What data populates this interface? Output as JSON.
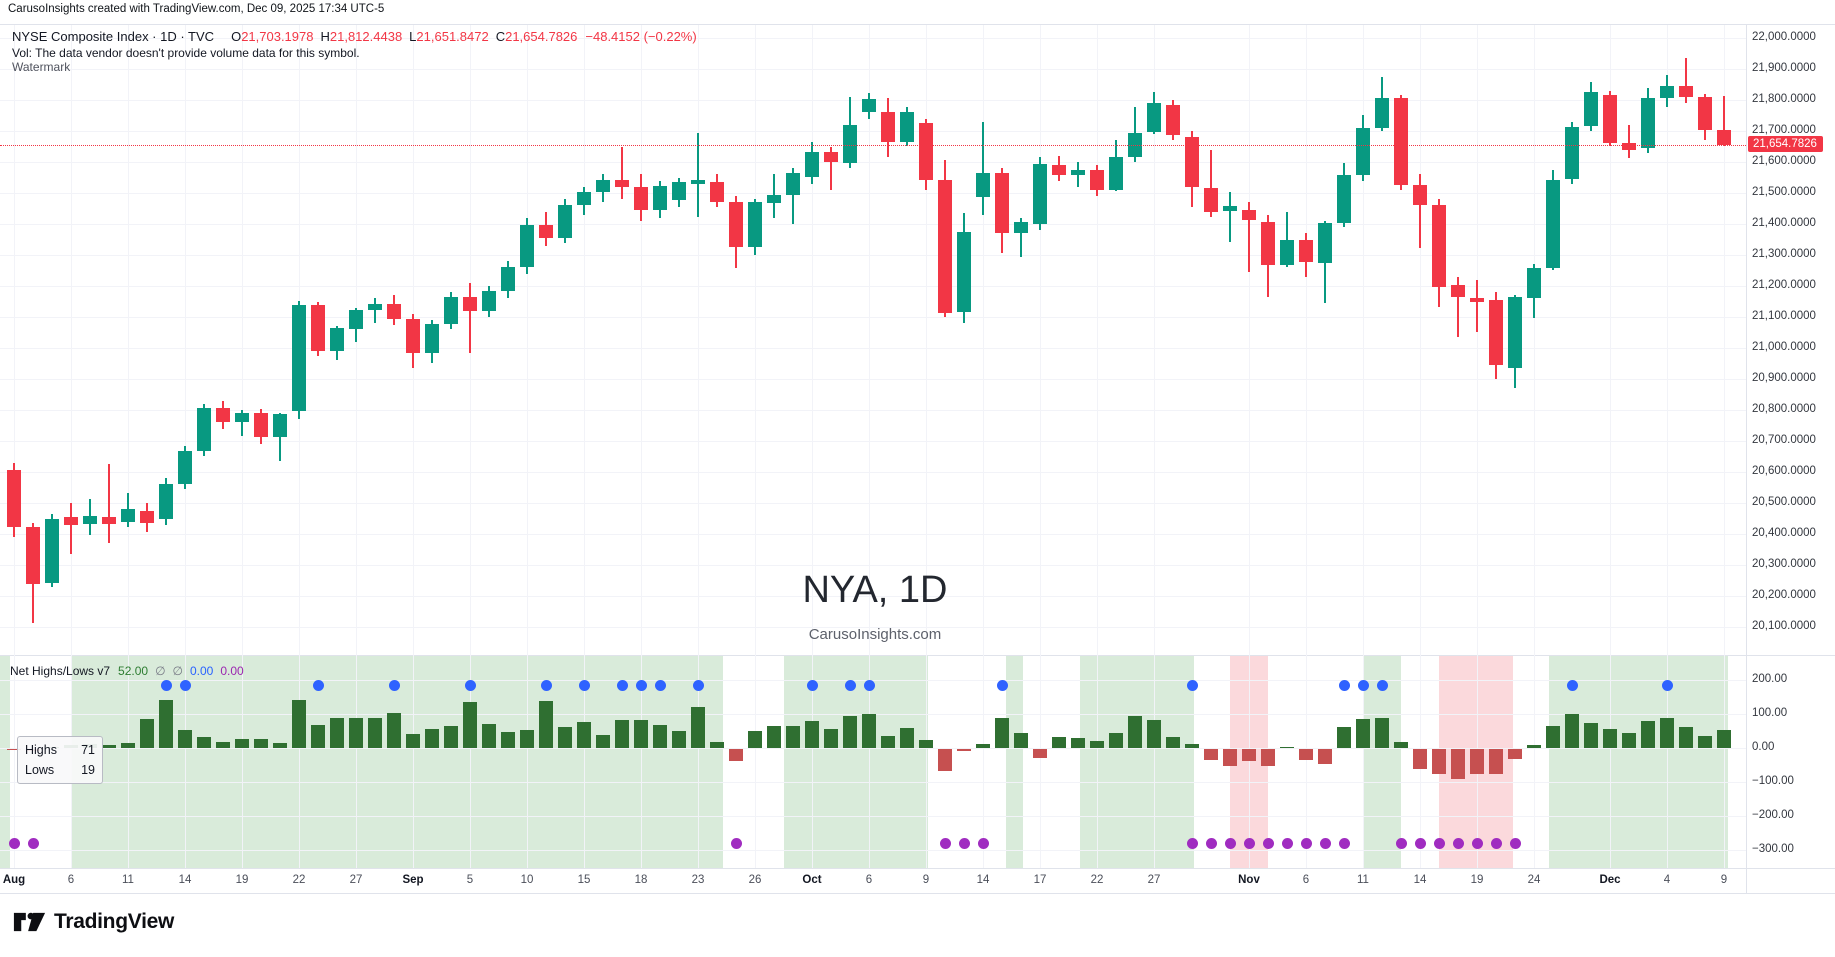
{
  "header": {
    "attribution": "CarusoInsights created with TradingView.com, Dec 09, 2025 17:34 UTC-5"
  },
  "legend": {
    "title": "NYSE Composite Index · 1D · TVC",
    "open_label": "O",
    "open": "21,703.1978",
    "high_label": "H",
    "high": "21,812.4438",
    "low_label": "L",
    "low": "21,651.8472",
    "close_label": "C",
    "close": "21,654.7826",
    "change": "−48.4152 (−0.22%)",
    "vol_line": "Vol: The data vendor doesn't provide volume data for this symbol.",
    "watermark_row": "Watermark"
  },
  "watermark": {
    "title": "NYA, 1D",
    "subtitle": "CarusoInsights.com"
  },
  "price_axis": {
    "current": "21,654.7826"
  },
  "indicator": {
    "legend": {
      "name": "Net Highs/Lows v7",
      "value": "52.00",
      "null_a": "∅",
      "null_b": "∅",
      "value_blue": "0.00",
      "value_purple": "0.00"
    },
    "tooltip": {
      "highs_label": "Highs",
      "highs_value": "71",
      "lows_label": "Lows",
      "lows_value": "19"
    }
  },
  "logo": {
    "brand": "TradingView"
  },
  "colors": {
    "up": "#089981",
    "down": "#f23645",
    "hist_pos": "#2f6f31",
    "hist_neg": "#c65050",
    "dot_blue": "#2f62ff",
    "dot_purple": "#a02cc0",
    "band_green": "#d9ebda",
    "band_pink": "#fbd9dc",
    "current_line": "#f23645"
  },
  "time_axis": [
    {
      "label": "Aug",
      "bar": 0,
      "major": true
    },
    {
      "label": "6",
      "bar": 3
    },
    {
      "label": "11",
      "bar": 6
    },
    {
      "label": "14",
      "bar": 9
    },
    {
      "label": "19",
      "bar": 12
    },
    {
      "label": "22",
      "bar": 15
    },
    {
      "label": "27",
      "bar": 18
    },
    {
      "label": "Sep",
      "bar": 21,
      "major": true
    },
    {
      "label": "5",
      "bar": 24
    },
    {
      "label": "10",
      "bar": 27
    },
    {
      "label": "15",
      "bar": 30
    },
    {
      "label": "18",
      "bar": 33
    },
    {
      "label": "23",
      "bar": 36
    },
    {
      "label": "26",
      "bar": 39
    },
    {
      "label": "Oct",
      "bar": 42,
      "major": true
    },
    {
      "label": "6",
      "bar": 45
    },
    {
      "label": "9",
      "bar": 48
    },
    {
      "label": "14",
      "bar": 51
    },
    {
      "label": "17",
      "bar": 54
    },
    {
      "label": "22",
      "bar": 57
    },
    {
      "label": "27",
      "bar": 60
    },
    {
      "label": "Nov",
      "bar": 65,
      "major": true
    },
    {
      "label": "6",
      "bar": 68
    },
    {
      "label": "11",
      "bar": 71
    },
    {
      "label": "14",
      "bar": 74
    },
    {
      "label": "19",
      "bar": 77
    },
    {
      "label": "24",
      "bar": 80
    },
    {
      "label": "Dec",
      "bar": 84,
      "major": true
    },
    {
      "label": "4",
      "bar": 87
    },
    {
      "label": "9",
      "bar": 90
    }
  ],
  "chart_data": {
    "type": "candlestick+histogram",
    "title": "NYSE Composite Index, Daily, with Net Highs/Lows v7 indicator",
    "symbol": "NYA",
    "interval": "1D",
    "price_ylim": [
      20010,
      22045
    ],
    "indicator_ylim": [
      -310,
      275
    ],
    "legend_on": false,
    "grid": true,
    "current_price": 21654.7826,
    "price_ticks": [
      {
        "label": "22,000.0000",
        "value": 22000
      },
      {
        "label": "21,900.0000",
        "value": 21900
      },
      {
        "label": "21,800.0000",
        "value": 21800
      },
      {
        "label": "21,700.0000",
        "value": 21700
      },
      {
        "label": "21,600.0000",
        "value": 21600
      },
      {
        "label": "21,500.0000",
        "value": 21500
      },
      {
        "label": "21,400.0000",
        "value": 21400
      },
      {
        "label": "21,300.0000",
        "value": 21300
      },
      {
        "label": "21,200.0000",
        "value": 21200
      },
      {
        "label": "21,100.0000",
        "value": 21100
      },
      {
        "label": "21,000.0000",
        "value": 21000
      },
      {
        "label": "20,900.0000",
        "value": 20900
      },
      {
        "label": "20,800.0000",
        "value": 20800
      },
      {
        "label": "20,700.0000",
        "value": 20700
      },
      {
        "label": "20,600.0000",
        "value": 20600
      },
      {
        "label": "20,500.0000",
        "value": 20500
      },
      {
        "label": "20,400.0000",
        "value": 20400
      },
      {
        "label": "20,300.0000",
        "value": 20300
      },
      {
        "label": "20,200.0000",
        "value": 20200
      },
      {
        "label": "20,100.0000",
        "value": 20100
      }
    ],
    "indicator_ticks": [
      {
        "label": "200.00",
        "value": 200
      },
      {
        "label": "100.00",
        "value": 100
      },
      {
        "label": "0.00",
        "value": 0
      },
      {
        "label": "−100.00",
        "value": -100
      },
      {
        "label": "−200.00",
        "value": -200
      },
      {
        "label": "−300.00",
        "value": -300
      }
    ],
    "candles_format": [
      "date",
      "open",
      "high",
      "low",
      "close"
    ],
    "candles": [
      [
        "Aug 1",
        20606,
        20629,
        20390,
        20423
      ],
      [
        "Aug 4",
        20423,
        20435,
        20113,
        20239
      ],
      [
        "Aug 5",
        20242,
        20465,
        20230,
        20448
      ],
      [
        "Aug 6",
        20455,
        20500,
        20335,
        20429
      ],
      [
        "Aug 7",
        20432,
        20513,
        20397,
        20458
      ],
      [
        "Aug 8",
        20455,
        20626,
        20371,
        20432
      ],
      [
        "Aug 11",
        20439,
        20532,
        20423,
        20481
      ],
      [
        "Aug 12",
        20474,
        20500,
        20406,
        20435
      ],
      [
        "Aug 13",
        20448,
        20580,
        20430,
        20561
      ],
      [
        "Aug 14",
        20561,
        20685,
        20545,
        20668
      ],
      [
        "Aug 15",
        20668,
        20820,
        20650,
        20806
      ],
      [
        "Aug 18",
        20806,
        20830,
        20740,
        20762
      ],
      [
        "Aug 19",
        20762,
        20800,
        20715,
        20790
      ],
      [
        "Aug 20",
        20790,
        20802,
        20690,
        20712
      ],
      [
        "Aug 21",
        20712,
        20790,
        20635,
        20788
      ],
      [
        "Aug 22",
        20798,
        21152,
        20770,
        21139
      ],
      [
        "Aug 25",
        21139,
        21150,
        20975,
        20990
      ],
      [
        "Aug 26",
        20990,
        21070,
        20960,
        21064
      ],
      [
        "Aug 27",
        21062,
        21130,
        21020,
        21123
      ],
      [
        "Aug 28",
        21123,
        21160,
        21080,
        21142
      ],
      [
        "Aug 29",
        21142,
        21170,
        21075,
        21095
      ],
      [
        "Sep 2",
        21095,
        21110,
        20935,
        20985
      ],
      [
        "Sep 3",
        20985,
        21090,
        20950,
        21078
      ],
      [
        "Sep 4",
        21078,
        21180,
        21060,
        21165
      ],
      [
        "Sep 5",
        21165,
        21210,
        20985,
        21120
      ],
      [
        "Sep 8",
        21120,
        21200,
        21100,
        21185
      ],
      [
        "Sep 9",
        21185,
        21280,
        21160,
        21262
      ],
      [
        "Sep 10",
        21262,
        21420,
        21240,
        21398
      ],
      [
        "Sep 11",
        21398,
        21440,
        21330,
        21355
      ],
      [
        "Sep 12",
        21355,
        21480,
        21340,
        21462
      ],
      [
        "Sep 15",
        21462,
        21520,
        21430,
        21502
      ],
      [
        "Sep 16",
        21502,
        21560,
        21470,
        21543
      ],
      [
        "Sep 17",
        21543,
        21650,
        21480,
        21520
      ],
      [
        "Sep 18",
        21520,
        21560,
        21410,
        21445
      ],
      [
        "Sep 19",
        21445,
        21540,
        21420,
        21523
      ],
      [
        "Sep 22",
        21477,
        21550,
        21455,
        21535
      ],
      [
        "Sep 23",
        21530,
        21694,
        21423,
        21541
      ],
      [
        "Sep 24",
        21535,
        21560,
        21455,
        21471
      ],
      [
        "Sep 25",
        21471,
        21490,
        21258,
        21326
      ],
      [
        "Sep 26",
        21326,
        21480,
        21300,
        21471
      ],
      [
        "Sep 29",
        21468,
        21560,
        21420,
        21494
      ],
      [
        "Sep 30",
        21494,
        21580,
        21400,
        21565
      ],
      [
        "Oct 1",
        21552,
        21665,
        21530,
        21632
      ],
      [
        "Oct 2",
        21632,
        21650,
        21510,
        21600
      ],
      [
        "Oct 3",
        21597,
        21810,
        21580,
        21719
      ],
      [
        "Oct 6",
        21761,
        21823,
        21740,
        21803
      ],
      [
        "Oct 7",
        21761,
        21806,
        21616,
        21664
      ],
      [
        "Oct 8",
        21665,
        21777,
        21650,
        21761
      ],
      [
        "Oct 9",
        21726,
        21740,
        21510,
        21542
      ],
      [
        "Oct 10",
        21542,
        21606,
        21100,
        21113
      ],
      [
        "Oct 13",
        21116,
        21435,
        21080,
        21374
      ],
      [
        "Oct 14",
        21487,
        21729,
        21429,
        21565
      ],
      [
        "Oct 15",
        21565,
        21580,
        21306,
        21371
      ],
      [
        "Oct 16",
        21371,
        21420,
        21294,
        21406
      ],
      [
        "Oct 17",
        21400,
        21616,
        21380,
        21594
      ],
      [
        "Oct 20",
        21590,
        21620,
        21540,
        21558
      ],
      [
        "Oct 21",
        21558,
        21600,
        21520,
        21574
      ],
      [
        "Oct 22",
        21574,
        21590,
        21490,
        21510
      ],
      [
        "Oct 23",
        21510,
        21671,
        21505,
        21616
      ],
      [
        "Oct 24",
        21616,
        21777,
        21600,
        21694
      ],
      [
        "Oct 27",
        21697,
        21826,
        21690,
        21790
      ],
      [
        "Oct 28",
        21784,
        21800,
        21670,
        21687
      ],
      [
        "Oct 29",
        21681,
        21700,
        21455,
        21519
      ],
      [
        "Oct 30",
        21516,
        21639,
        21423,
        21439
      ],
      [
        "Oct 31",
        21442,
        21503,
        21342,
        21458
      ],
      [
        "Nov 3",
        21445,
        21470,
        21245,
        21413
      ],
      [
        "Nov 4",
        21406,
        21430,
        21165,
        21268
      ],
      [
        "Nov 5",
        21268,
        21439,
        21260,
        21348
      ],
      [
        "Nov 6",
        21348,
        21370,
        21229,
        21277
      ],
      [
        "Nov 7",
        21274,
        21410,
        21145,
        21403
      ],
      [
        "Nov 10",
        21403,
        21597,
        21390,
        21558
      ],
      [
        "Nov 11",
        21558,
        21752,
        21540,
        21710
      ],
      [
        "Nov 12",
        21710,
        21875,
        21700,
        21806
      ],
      [
        "Nov 13",
        21806,
        21815,
        21510,
        21526
      ],
      [
        "Nov 14",
        21526,
        21560,
        21323,
        21461
      ],
      [
        "Nov 17",
        21461,
        21480,
        21132,
        21197
      ],
      [
        "Nov 18",
        21203,
        21230,
        21035,
        21165
      ],
      [
        "Nov 19",
        21161,
        21219,
        21052,
        21148
      ],
      [
        "Nov 20",
        21155,
        21180,
        20900,
        20945
      ],
      [
        "Nov 21",
        20935,
        21170,
        20870,
        21164
      ],
      [
        "Nov 24",
        21161,
        21270,
        21097,
        21258
      ],
      [
        "Nov 25",
        21258,
        21574,
        21250,
        21542
      ],
      [
        "Nov 26",
        21545,
        21730,
        21530,
        21713
      ],
      [
        "Nov 28",
        21716,
        21858,
        21700,
        21826
      ],
      [
        "Dec 1",
        21816,
        21830,
        21650,
        21661
      ],
      [
        "Dec 2",
        21661,
        21719,
        21613,
        21639
      ],
      [
        "Dec 3",
        21645,
        21839,
        21630,
        21806
      ],
      [
        "Dec 4",
        21806,
        21881,
        21777,
        21845
      ],
      [
        "Dec 5",
        21845,
        21935,
        21790,
        21810
      ],
      [
        "Dec 8",
        21810,
        21820,
        21671,
        21703
      ],
      [
        "Dec 9",
        21703.2,
        21812.44,
        21651.85,
        21654.78
      ]
    ],
    "net_highs_lows": [
      -4,
      -6,
      4,
      8,
      12,
      8,
      15,
      85,
      141,
      53,
      33,
      19,
      26,
      26,
      14,
      141,
      68,
      88,
      88,
      88,
      103,
      41,
      56,
      65,
      135,
      71,
      47,
      53,
      138,
      62,
      77,
      38,
      82,
      82,
      68,
      50,
      121,
      18,
      -38,
      50,
      65,
      65,
      79,
      57,
      95,
      100,
      36,
      60,
      24,
      -65,
      -8,
      11,
      88,
      45,
      -29,
      33,
      28,
      21,
      43,
      95,
      82,
      33,
      12,
      -35,
      -50,
      -38,
      -50,
      4,
      -35,
      -47,
      62,
      85,
      88,
      17,
      -60,
      -75,
      -90,
      -75,
      -75,
      -30,
      10,
      65,
      100,
      75,
      55,
      45,
      80,
      88,
      62,
      35,
      52
    ],
    "blue_dot_bars": [
      8,
      9,
      16,
      20,
      24,
      28,
      30,
      32,
      33,
      34,
      36,
      42,
      44,
      45,
      52,
      62,
      70,
      71,
      72,
      82,
      87
    ],
    "blue_dot_value": 185,
    "purple_dot_bars": [
      0,
      1,
      38,
      49,
      50,
      51,
      62,
      63,
      64,
      65,
      66,
      67,
      68,
      69,
      70,
      73,
      74,
      75,
      76,
      77,
      78,
      79
    ],
    "purple_dot_value": -280,
    "bands": [
      {
        "type": "green",
        "from": -0.5,
        "to": 0.3
      },
      {
        "type": "white",
        "from": 0.3,
        "to": 3.5
      },
      {
        "type": "green",
        "from": 3.5,
        "to": 37.8
      },
      {
        "type": "white",
        "from": 37.8,
        "to": 41.0
      },
      {
        "type": "green",
        "from": 41.0,
        "to": 48.6
      },
      {
        "type": "white",
        "from": 48.6,
        "to": 52.7
      },
      {
        "type": "green",
        "from": 52.7,
        "to": 53.6
      },
      {
        "type": "white",
        "from": 53.6,
        "to": 56.6
      },
      {
        "type": "green",
        "from": 56.6,
        "to": 62.6
      },
      {
        "type": "white",
        "from": 62.6,
        "to": 64.5
      },
      {
        "type": "pink",
        "from": 64.5,
        "to": 66.5
      },
      {
        "type": "white",
        "from": 66.5,
        "to": 71.5
      },
      {
        "type": "green",
        "from": 71.5,
        "to": 73.5
      },
      {
        "type": "white",
        "from": 73.5,
        "to": 75.5
      },
      {
        "type": "pink",
        "from": 75.5,
        "to": 79.4
      },
      {
        "type": "white",
        "from": 79.4,
        "to": 81.3
      },
      {
        "type": "green",
        "from": 81.3,
        "to": 90.7
      }
    ]
  }
}
